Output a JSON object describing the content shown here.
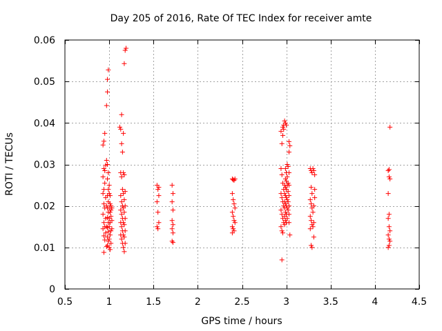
{
  "chart_data": {
    "type": "scatter",
    "title": "Day 205 of 2016, Rate Of TEC Index for receiver amte",
    "xlabel": "GPS time / hours",
    "ylabel": "ROTI / TECUs",
    "xlim": [
      0.5,
      4.5
    ],
    "ylim": [
      0,
      0.06
    ],
    "xticks": [
      0.5,
      1,
      1.5,
      2,
      2.5,
      3,
      3.5,
      4,
      4.5
    ],
    "xtick_labels": [
      "0.5",
      "1",
      "1.5",
      "2",
      "2.5",
      "3",
      "3.5",
      "4",
      "4.5"
    ],
    "yticks": [
      0,
      0.01,
      0.02,
      0.03,
      0.04,
      0.05,
      0.06
    ],
    "ytick_labels": [
      "0",
      "0.01",
      "0.02",
      "0.03",
      "0.04",
      "0.05",
      "0.06"
    ],
    "grid": true,
    "marker": "+",
    "color": "#ff0000",
    "series": [
      {
        "name": "ROTI",
        "points": [
          [
            0.93,
            0.0347
          ],
          [
            0.94,
            0.0356
          ],
          [
            0.95,
            0.0375
          ],
          [
            0.94,
            0.029
          ],
          [
            0.95,
            0.0285
          ],
          [
            0.96,
            0.0298
          ],
          [
            0.93,
            0.027
          ],
          [
            0.95,
            0.0255
          ],
          [
            0.94,
            0.024
          ],
          [
            0.93,
            0.023
          ],
          [
            0.96,
            0.022
          ],
          [
            0.94,
            0.0205
          ],
          [
            0.95,
            0.0195
          ],
          [
            0.93,
            0.018
          ],
          [
            0.96,
            0.017
          ],
          [
            0.94,
            0.016
          ],
          [
            0.95,
            0.015
          ],
          [
            0.93,
            0.0145
          ],
          [
            0.96,
            0.0135
          ],
          [
            0.94,
            0.0128
          ],
          [
            0.95,
            0.0118
          ],
          [
            0.94,
            0.0088
          ],
          [
            0.97,
            0.0102
          ],
          [
            0.97,
            0.015
          ],
          [
            0.97,
            0.02
          ],
          [
            0.97,
            0.0442
          ],
          [
            0.98,
            0.0475
          ],
          [
            0.98,
            0.0505
          ],
          [
            0.99,
            0.0528
          ],
          [
            0.97,
            0.031
          ],
          [
            0.98,
            0.03
          ],
          [
            0.99,
            0.028
          ],
          [
            0.98,
            0.0265
          ],
          [
            0.99,
            0.024
          ],
          [
            0.98,
            0.0225
          ],
          [
            0.99,
            0.021
          ],
          [
            0.98,
            0.0195
          ],
          [
            0.99,
            0.0185
          ],
          [
            0.98,
            0.0172
          ],
          [
            0.99,
            0.016
          ],
          [
            0.98,
            0.0148
          ],
          [
            0.99,
            0.0138
          ],
          [
            0.98,
            0.0125
          ],
          [
            0.99,
            0.0115
          ],
          [
            0.98,
            0.0105
          ],
          [
            1.0,
            0.01
          ],
          [
            1.0,
            0.012
          ],
          [
            1.0,
            0.015
          ],
          [
            1.0,
            0.017
          ],
          [
            1.0,
            0.0195
          ],
          [
            1.0,
            0.023
          ],
          [
            1.0,
            0.025
          ],
          [
            1.01,
            0.0095
          ],
          [
            1.01,
            0.013
          ],
          [
            1.01,
            0.016
          ],
          [
            1.01,
            0.0185
          ],
          [
            1.01,
            0.0205
          ],
          [
            1.01,
            0.0225
          ],
          [
            1.02,
            0.011
          ],
          [
            1.02,
            0.014
          ],
          [
            1.02,
            0.0175
          ],
          [
            1.02,
            0.02
          ],
          [
            1.02,
            0.019
          ],
          [
            1.03,
            0.0165
          ],
          [
            1.03,
            0.0195
          ],
          [
            1.03,
            0.0145
          ],
          [
            1.12,
            0.039
          ],
          [
            1.13,
            0.0385
          ],
          [
            1.14,
            0.035
          ],
          [
            1.15,
            0.033
          ],
          [
            1.14,
            0.042
          ],
          [
            1.16,
            0.0375
          ],
          [
            1.13,
            0.028
          ],
          [
            1.14,
            0.027
          ],
          [
            1.15,
            0.024
          ],
          [
            1.13,
            0.0225
          ],
          [
            1.14,
            0.021
          ],
          [
            1.15,
            0.02
          ],
          [
            1.13,
            0.019
          ],
          [
            1.14,
            0.018
          ],
          [
            1.15,
            0.017
          ],
          [
            1.13,
            0.016
          ],
          [
            1.14,
            0.015
          ],
          [
            1.15,
            0.014
          ],
          [
            1.13,
            0.013
          ],
          [
            1.14,
            0.012
          ],
          [
            1.15,
            0.011
          ],
          [
            1.16,
            0.01
          ],
          [
            1.16,
            0.028
          ],
          [
            1.16,
            0.023
          ],
          [
            1.16,
            0.0195
          ],
          [
            1.16,
            0.016
          ],
          [
            1.16,
            0.013
          ],
          [
            1.17,
            0.0543
          ],
          [
            1.18,
            0.0575
          ],
          [
            1.19,
            0.058
          ],
          [
            1.17,
            0.0275
          ],
          [
            1.18,
            0.0235
          ],
          [
            1.17,
            0.0215
          ],
          [
            1.18,
            0.02
          ],
          [
            1.17,
            0.0185
          ],
          [
            1.18,
            0.017
          ],
          [
            1.17,
            0.0155
          ],
          [
            1.18,
            0.014
          ],
          [
            1.17,
            0.0125
          ],
          [
            1.18,
            0.011
          ],
          [
            1.17,
            0.009
          ],
          [
            1.54,
            0.025
          ],
          [
            1.55,
            0.024
          ],
          [
            1.56,
            0.0225
          ],
          [
            1.54,
            0.021
          ],
          [
            1.55,
            0.0185
          ],
          [
            1.56,
            0.016
          ],
          [
            1.54,
            0.015
          ],
          [
            1.55,
            0.0145
          ],
          [
            1.56,
            0.0245
          ],
          [
            1.71,
            0.025
          ],
          [
            1.72,
            0.023
          ],
          [
            1.71,
            0.021
          ],
          [
            1.72,
            0.019
          ],
          [
            1.71,
            0.0165
          ],
          [
            1.72,
            0.0155
          ],
          [
            1.71,
            0.0145
          ],
          [
            1.72,
            0.0135
          ],
          [
            1.71,
            0.0115
          ],
          [
            1.72,
            0.0112
          ],
          [
            2.39,
            0.0265
          ],
          [
            2.4,
            0.0263
          ],
          [
            2.41,
            0.0262
          ],
          [
            2.42,
            0.0265
          ],
          [
            2.39,
            0.023
          ],
          [
            2.4,
            0.0215
          ],
          [
            2.41,
            0.0205
          ],
          [
            2.42,
            0.0195
          ],
          [
            2.39,
            0.0185
          ],
          [
            2.4,
            0.0175
          ],
          [
            2.41,
            0.0165
          ],
          [
            2.42,
            0.016
          ],
          [
            2.39,
            0.015
          ],
          [
            2.4,
            0.0145
          ],
          [
            2.41,
            0.014
          ],
          [
            2.39,
            0.0135
          ],
          [
            2.94,
            0.038
          ],
          [
            2.95,
            0.035
          ],
          [
            2.96,
            0.039
          ],
          [
            2.97,
            0.0395
          ],
          [
            2.98,
            0.0405
          ],
          [
            2.99,
            0.04
          ],
          [
            3.0,
            0.0395
          ],
          [
            2.97,
            0.0385
          ],
          [
            2.96,
            0.037
          ],
          [
            2.95,
            0.007
          ],
          [
            2.94,
            0.029
          ],
          [
            2.95,
            0.0275
          ],
          [
            2.96,
            0.0255
          ],
          [
            2.97,
            0.024
          ],
          [
            2.94,
            0.023
          ],
          [
            2.95,
            0.022
          ],
          [
            2.96,
            0.021
          ],
          [
            2.97,
            0.02
          ],
          [
            2.94,
            0.019
          ],
          [
            2.95,
            0.018
          ],
          [
            2.96,
            0.017
          ],
          [
            2.97,
            0.016
          ],
          [
            2.94,
            0.015
          ],
          [
            2.95,
            0.014
          ],
          [
            2.96,
            0.0135
          ],
          [
            2.98,
            0.025
          ],
          [
            2.98,
            0.023
          ],
          [
            2.98,
            0.021
          ],
          [
            2.98,
            0.0195
          ],
          [
            2.98,
            0.0175
          ],
          [
            2.98,
            0.0155
          ],
          [
            2.99,
            0.029
          ],
          [
            2.99,
            0.0265
          ],
          [
            2.99,
            0.0245
          ],
          [
            2.99,
            0.0225
          ],
          [
            2.99,
            0.0205
          ],
          [
            2.99,
            0.0185
          ],
          [
            2.99,
            0.0165
          ],
          [
            3.0,
            0.028
          ],
          [
            3.0,
            0.026
          ],
          [
            3.0,
            0.024
          ],
          [
            3.0,
            0.022
          ],
          [
            3.0,
            0.02
          ],
          [
            3.0,
            0.018
          ],
          [
            3.0,
            0.016
          ],
          [
            3.01,
            0.03
          ],
          [
            3.01,
            0.027
          ],
          [
            3.01,
            0.025
          ],
          [
            3.01,
            0.0215
          ],
          [
            3.01,
            0.0195
          ],
          [
            3.01,
            0.017
          ],
          [
            3.02,
            0.0295
          ],
          [
            3.02,
            0.0255
          ],
          [
            3.02,
            0.0235
          ],
          [
            3.02,
            0.021
          ],
          [
            3.02,
            0.019
          ],
          [
            3.03,
            0.0355
          ],
          [
            3.03,
            0.033
          ],
          [
            3.04,
            0.0345
          ],
          [
            3.03,
            0.028
          ],
          [
            3.03,
            0.025
          ],
          [
            3.03,
            0.0225
          ],
          [
            3.03,
            0.02
          ],
          [
            3.03,
            0.018
          ],
          [
            3.03,
            0.016
          ],
          [
            3.04,
            0.013
          ],
          [
            3.27,
            0.029
          ],
          [
            3.28,
            0.0285
          ],
          [
            3.29,
            0.028
          ],
          [
            3.3,
            0.029
          ],
          [
            3.31,
            0.0285
          ],
          [
            3.32,
            0.0275
          ],
          [
            3.28,
            0.0245
          ],
          [
            3.29,
            0.023
          ],
          [
            3.27,
            0.0215
          ],
          [
            3.28,
            0.0205
          ],
          [
            3.29,
            0.0195
          ],
          [
            3.3,
            0.0185
          ],
          [
            3.27,
            0.0175
          ],
          [
            3.28,
            0.0165
          ],
          [
            3.29,
            0.0155
          ],
          [
            3.3,
            0.015
          ],
          [
            3.27,
            0.0145
          ],
          [
            3.28,
            0.0105
          ],
          [
            3.29,
            0.01
          ],
          [
            3.31,
            0.0125
          ],
          [
            3.31,
            0.02
          ],
          [
            3.32,
            0.022
          ],
          [
            3.32,
            0.024
          ],
          [
            3.31,
            0.016
          ],
          [
            4.15,
            0.0285
          ],
          [
            4.16,
            0.0288
          ],
          [
            4.17,
            0.039
          ],
          [
            4.16,
            0.027
          ],
          [
            4.17,
            0.0265
          ],
          [
            4.15,
            0.023
          ],
          [
            4.16,
            0.018
          ],
          [
            4.15,
            0.017
          ],
          [
            4.16,
            0.015
          ],
          [
            4.17,
            0.014
          ],
          [
            4.15,
            0.013
          ],
          [
            4.16,
            0.012
          ],
          [
            4.17,
            0.0115
          ],
          [
            4.16,
            0.0105
          ],
          [
            4.15,
            0.01
          ]
        ]
      }
    ]
  }
}
